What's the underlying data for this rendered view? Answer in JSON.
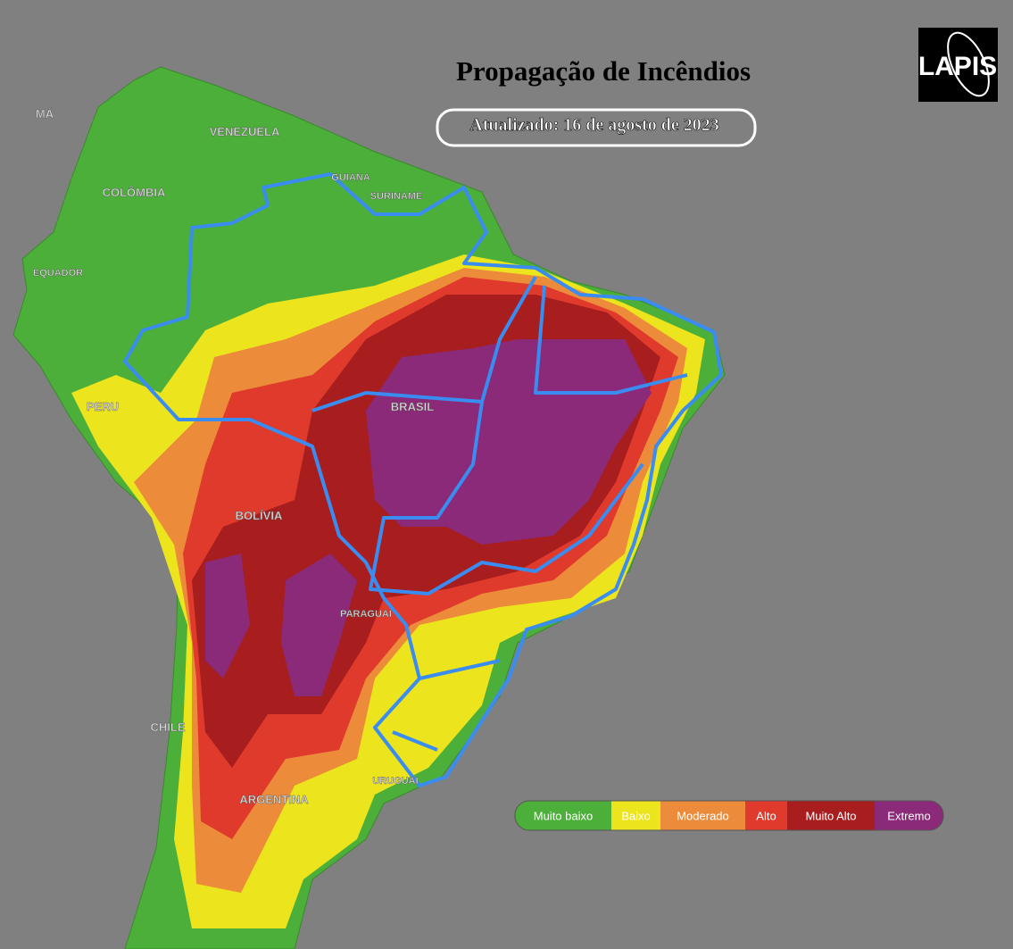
{
  "header": {
    "title": "Propagação de Incêndios",
    "updated": "Atualizado: 16 de agosto de 2023"
  },
  "logo": "LAPIS",
  "labels": [
    "MÁ",
    "VENEZUELA",
    "GUIANA",
    "SURINAME",
    "COLÔMBIA",
    "EQUADOR",
    "PERU",
    "BRASIL",
    "BOLÍVIA",
    "PARAGUAI",
    "CHILE",
    "ARGENTINA",
    "URUGUAI"
  ],
  "legend": [
    {
      "label": "Muito baixo",
      "color": "#4caf3a"
    },
    {
      "label": "Baixo",
      "color": "#ece41c"
    },
    {
      "label": "Moderado",
      "color": "#ec8c3a"
    },
    {
      "label": "Alto",
      "color": "#e03a2c"
    },
    {
      "label": "Muito Alto",
      "color": "#a81e1e"
    },
    {
      "label": "Extremo",
      "color": "#8a2a78"
    }
  ]
}
